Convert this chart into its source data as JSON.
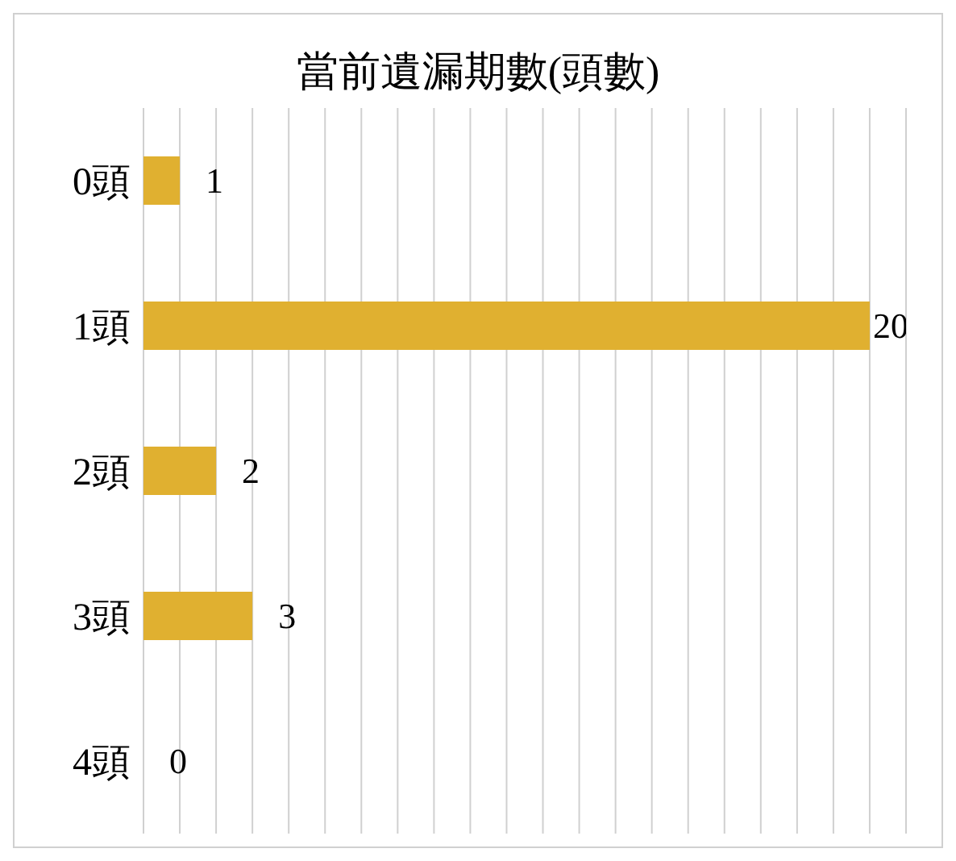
{
  "chart_data": {
    "type": "bar",
    "orientation": "horizontal",
    "title": "當前遺漏期數(頭數)",
    "categories": [
      "0頭",
      "1頭",
      "2頭",
      "3頭",
      "4頭"
    ],
    "values": [
      1,
      20,
      2,
      3,
      0
    ],
    "color": "#e0b030",
    "xlim": [
      0,
      21
    ],
    "xticks": [
      {
        "value": 0,
        "label": null
      },
      {
        "value": 1,
        "label": null
      },
      {
        "value": 2,
        "label": null
      },
      {
        "value": 3,
        "label": null
      },
      {
        "value": 4,
        "label": null
      },
      {
        "value": 5,
        "label": null
      },
      {
        "value": 6,
        "label": null
      },
      {
        "value": 7,
        "label": null
      },
      {
        "value": 8,
        "label": null
      },
      {
        "value": 9,
        "label": null
      },
      {
        "value": 10,
        "label": null
      },
      {
        "value": 11,
        "label": null
      },
      {
        "value": 12,
        "label": null
      },
      {
        "value": 13,
        "label": null
      },
      {
        "value": 14,
        "label": null
      },
      {
        "value": 15,
        "label": null
      },
      {
        "value": 16,
        "label": null
      },
      {
        "value": 17,
        "label": null
      },
      {
        "value": 18,
        "label": null
      },
      {
        "value": 19,
        "label": null
      },
      {
        "value": 20,
        "label": null
      },
      {
        "value": 21,
        "label": null
      }
    ],
    "grid": "x",
    "tick_labels": "y",
    "data_labels": true
  }
}
